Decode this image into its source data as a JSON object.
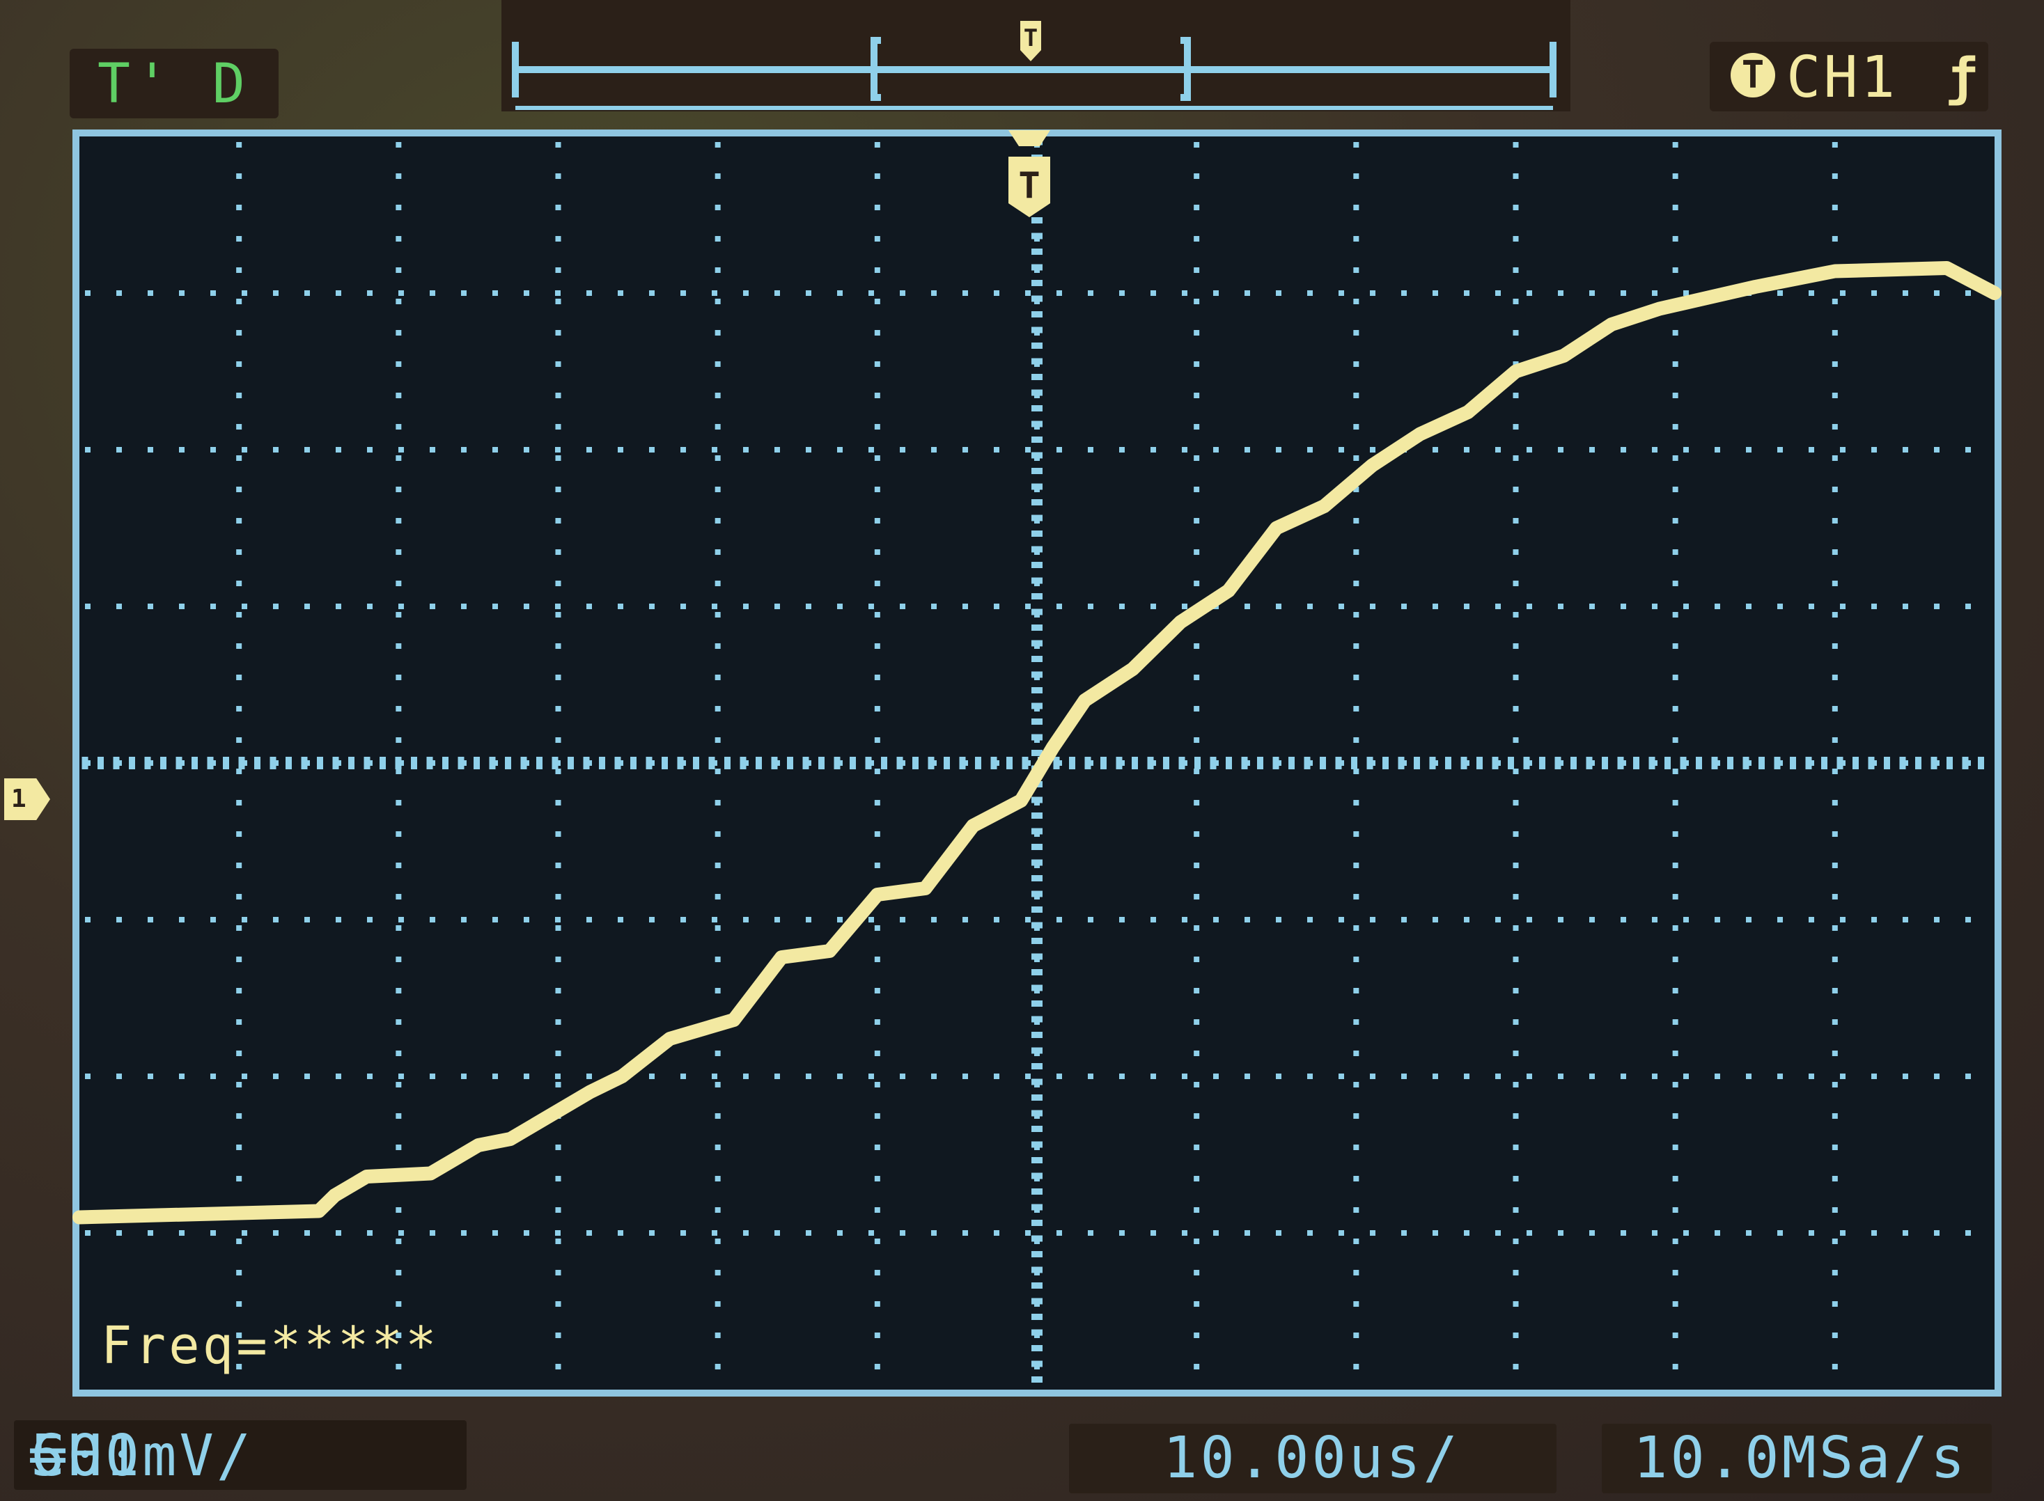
{
  "status": {
    "mode": "T' D"
  },
  "trigger": {
    "badge": "T",
    "source": "CH1",
    "edge_icon": "rising-edge-icon",
    "edge_glyph": "ƒ"
  },
  "channel": {
    "marker": "1",
    "coupling_label": "CH1",
    "coupling_icon": "dc-coupling-icon",
    "coupling_glyph": "═",
    "scale": "500mV/"
  },
  "measurement": {
    "freq": "Freq=*****"
  },
  "timebase": {
    "value": "10.00us/"
  },
  "sample_rate": {
    "value": "10.0MSa/s"
  },
  "colors": {
    "trace": "#f3e9a2",
    "grid": "#8fd0ea",
    "status_green": "#5fcf64",
    "background": "#101820"
  },
  "chart_data": {
    "type": "line",
    "title": "",
    "xlabel": "",
    "ylabel": "",
    "x_unit": "us",
    "y_unit": "V",
    "xlim": [
      -60,
      60
    ],
    "ylim": [
      -2.0,
      2.0
    ],
    "divisions": {
      "x": 12,
      "y": 8
    },
    "grid": true,
    "series": [
      {
        "x": [
          -60,
          -45,
          -44,
          -42,
          -38,
          -35,
          -33,
          -28,
          -26,
          -23,
          -19,
          -16,
          -13,
          -10,
          -7,
          -4,
          -1,
          1,
          3,
          6,
          9,
          12,
          15,
          18,
          21,
          24,
          27,
          30,
          33,
          36,
          39,
          45,
          50,
          57,
          60
        ],
        "y": [
          -1.45,
          -1.43,
          -1.38,
          -1.32,
          -1.31,
          -1.22,
          -1.2,
          -1.05,
          -1.0,
          -0.88,
          -0.82,
          -0.62,
          -0.6,
          -0.42,
          -0.4,
          -0.2,
          -0.12,
          0.05,
          0.2,
          0.3,
          0.45,
          0.55,
          0.75,
          0.82,
          0.95,
          1.05,
          1.12,
          1.25,
          1.3,
          1.4,
          1.45,
          1.52,
          1.57,
          1.58,
          1.5
        ]
      }
    ]
  }
}
